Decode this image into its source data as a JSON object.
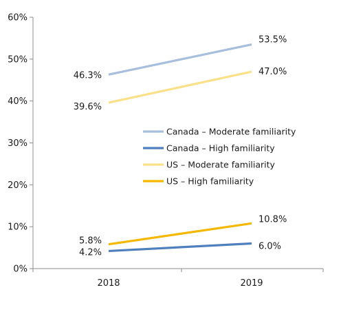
{
  "chart_data": {
    "type": "line",
    "title": "",
    "xlabel": "",
    "ylabel": "",
    "categories": [
      "2018",
      "2019"
    ],
    "ylim": [
      0,
      60
    ],
    "yticks": [
      "0%",
      "10%",
      "20%",
      "30%",
      "40%",
      "50%",
      "60%"
    ],
    "grid": false,
    "legend_position": "right",
    "series": [
      {
        "name": "Canada – Moderate familiarity",
        "values": [
          46.3,
          53.5
        ],
        "labels": [
          "46.3%",
          "53.5%"
        ],
        "color": "#a7bfdd"
      },
      {
        "name": "Canada – High familiarity",
        "values": [
          4.2,
          6.0
        ],
        "labels": [
          "4.2%",
          "6.0%"
        ],
        "color": "#4f7fbd"
      },
      {
        "name": "US – Moderate familiarity",
        "values": [
          39.6,
          47.0
        ],
        "labels": [
          "39.6%",
          "47.0%"
        ],
        "color": "#fbe08a"
      },
      {
        "name": "US – High familiarity",
        "values": [
          5.8,
          10.8
        ],
        "labels": [
          "5.8%",
          "10.8%"
        ],
        "color": "#f5b800"
      }
    ]
  }
}
